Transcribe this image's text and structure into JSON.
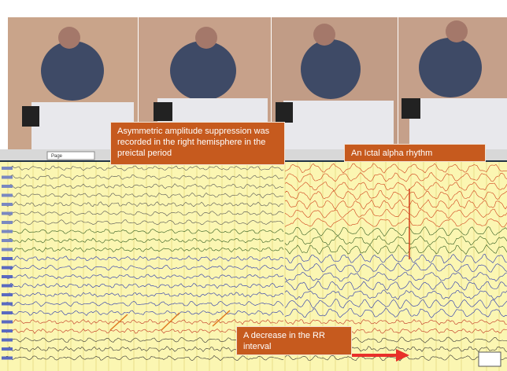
{
  "toolbar": {
    "page_label": "Page"
  },
  "annotations": [
    {
      "text": "Asymmetric amplitude suppression was recorded in the right hemisphere in the preictal period"
    },
    {
      "text": "An Ictal alpha rhythm"
    },
    {
      "text": "A decrease in the RR interval"
    }
  ]
}
